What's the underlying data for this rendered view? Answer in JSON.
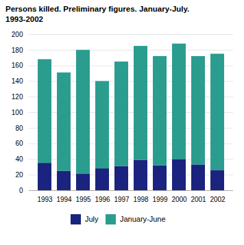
{
  "chart_data": {
    "type": "bar",
    "stacked": true,
    "title": "Persons killed. Preliminary figures. January-July.",
    "subtitle": "1993-2002",
    "categories": [
      "1993",
      "1994",
      "1995",
      "1996",
      "1997",
      "1998",
      "1999",
      "2000",
      "2001",
      "2002"
    ],
    "series": [
      {
        "name": "July",
        "color": "#1a237e",
        "values": [
          35,
          25,
          21,
          28,
          31,
          39,
          32,
          40,
          33,
          26
        ]
      },
      {
        "name": "January-June",
        "color": "#2a9d8f",
        "values": [
          133,
          126,
          159,
          112,
          134,
          146,
          140,
          148,
          139,
          149
        ]
      }
    ],
    "ylim": [
      0,
      200
    ],
    "yticks": [
      0,
      20,
      40,
      60,
      80,
      100,
      120,
      140,
      160,
      180,
      200
    ],
    "grid": true,
    "legend": "bottom"
  }
}
